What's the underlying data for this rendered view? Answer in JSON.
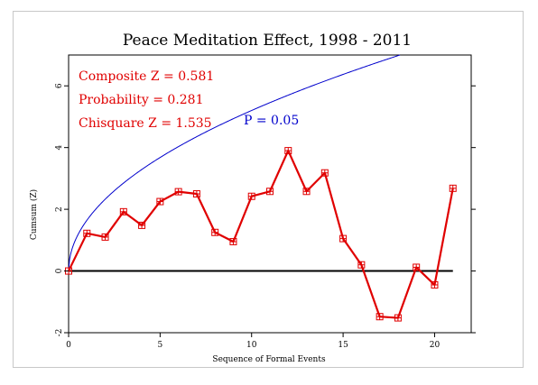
{
  "chart_data": {
    "type": "line",
    "title": "Peace Meditation Effect, 1998 - 2011",
    "xlabel": "Sequence of Formal Events",
    "ylabel": "Cumsum (Z)",
    "xlim": [
      0,
      22
    ],
    "ylim": [
      -2,
      7
    ],
    "xticks": [
      0,
      5,
      10,
      15,
      20
    ],
    "yticks": [
      -2,
      0,
      2,
      4,
      6
    ],
    "grid": false,
    "series": [
      {
        "type": "line-markers",
        "color": "#e00000",
        "x": [
          0,
          1,
          2,
          3,
          4,
          5,
          6,
          7,
          8,
          9,
          10,
          11,
          12,
          13,
          14,
          15,
          16,
          17,
          18,
          19,
          20,
          21
        ],
        "values": [
          0.0,
          1.22,
          1.1,
          1.92,
          1.48,
          2.25,
          2.57,
          2.5,
          1.25,
          0.95,
          2.42,
          2.58,
          3.9,
          2.58,
          3.18,
          1.05,
          0.2,
          -1.48,
          -1.52,
          0.12,
          -0.45,
          2.68
        ]
      },
      {
        "name": "P = 0.05",
        "type": "line",
        "color": "#0000cc",
        "formula": "1.645*sqrt(x)"
      }
    ],
    "baseline": {
      "y": 0,
      "color": "#000000"
    },
    "annotations": {
      "composite": "Composite Z = 0.581",
      "probability": "Probability = 0.281",
      "chisquare": "Chisquare Z = 1.535",
      "p_label": "P = 0.05"
    },
    "colors": {
      "accent": "#e00000",
      "envelope": "#0000cc"
    }
  }
}
